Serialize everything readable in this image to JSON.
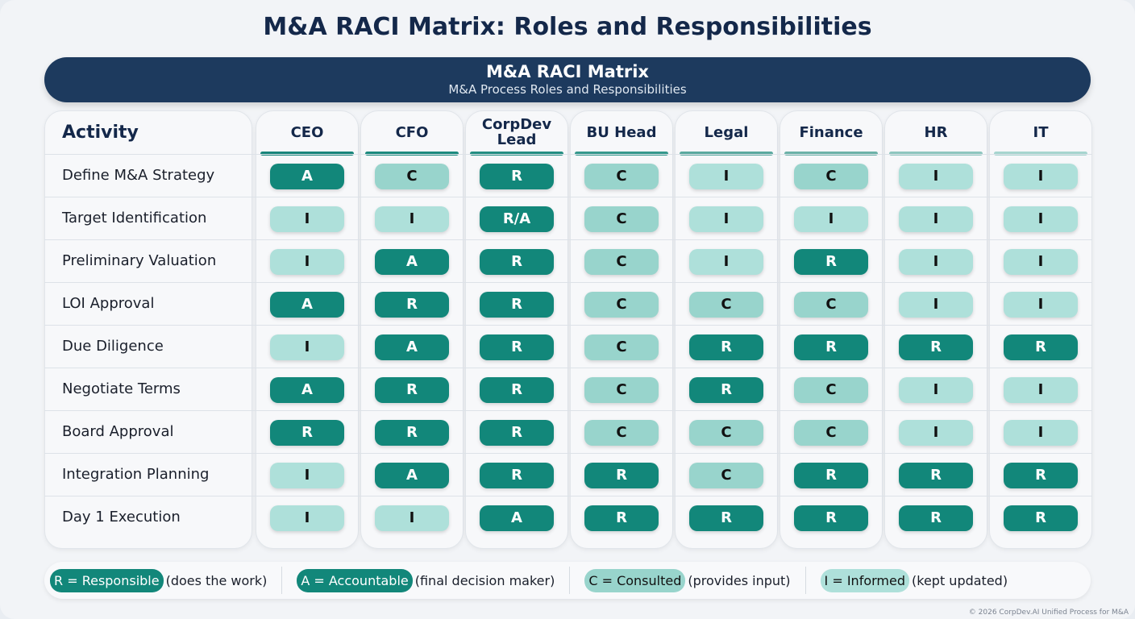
{
  "title": "M&A RACI Matrix: Roles and Responsibilities",
  "banner": {
    "title": "M&A RACI Matrix",
    "subtitle": "M&A Process Roles and Responsibilities"
  },
  "colors": {
    "R": "#12877a",
    "A": "#12877a",
    "R/A": "#12877a",
    "C": "#98d4cc",
    "I": "#aee0da",
    "banner": "#1d3a5e"
  },
  "table": {
    "activity_header": "Activity",
    "roles": [
      "CEO",
      "CFO",
      "CorpDev Lead",
      "BU Head",
      "Legal",
      "Finance",
      "HR",
      "IT"
    ],
    "rows": [
      {
        "activity": "Define M&A Strategy",
        "values": [
          "A",
          "C",
          "R",
          "C",
          "I",
          "C",
          "I",
          "I"
        ]
      },
      {
        "activity": "Target Identification",
        "values": [
          "I",
          "I",
          "R/A",
          "C",
          "I",
          "I",
          "I",
          "I"
        ]
      },
      {
        "activity": "Preliminary Valuation",
        "values": [
          "I",
          "A",
          "R",
          "C",
          "I",
          "R",
          "I",
          "I"
        ]
      },
      {
        "activity": "LOI Approval",
        "values": [
          "A",
          "R",
          "R",
          "C",
          "C",
          "C",
          "I",
          "I"
        ]
      },
      {
        "activity": "Due Diligence",
        "values": [
          "I",
          "A",
          "R",
          "C",
          "R",
          "R",
          "R",
          "R"
        ]
      },
      {
        "activity": "Negotiate Terms",
        "values": [
          "A",
          "R",
          "R",
          "C",
          "R",
          "C",
          "I",
          "I"
        ]
      },
      {
        "activity": "Board Approval",
        "values": [
          "R",
          "R",
          "R",
          "C",
          "C",
          "C",
          "I",
          "I"
        ]
      },
      {
        "activity": "Integration Planning",
        "values": [
          "I",
          "A",
          "R",
          "R",
          "C",
          "R",
          "R",
          "R"
        ]
      },
      {
        "activity": "Day 1 Execution",
        "values": [
          "I",
          "I",
          "A",
          "R",
          "R",
          "R",
          "R",
          "R"
        ]
      }
    ]
  },
  "legend": [
    {
      "key": "R = Responsible",
      "desc": "(does the work)",
      "code": "R"
    },
    {
      "key": "A = Accountable",
      "desc": "(final decision maker)",
      "code": "A"
    },
    {
      "key": "C = Consulted",
      "desc": "(provides input)",
      "code": "C"
    },
    {
      "key": "I = Informed",
      "desc": "(kept updated)",
      "code": "I"
    }
  ],
  "footer": "© 2026 CorpDev.AI Unified Process for M&A"
}
